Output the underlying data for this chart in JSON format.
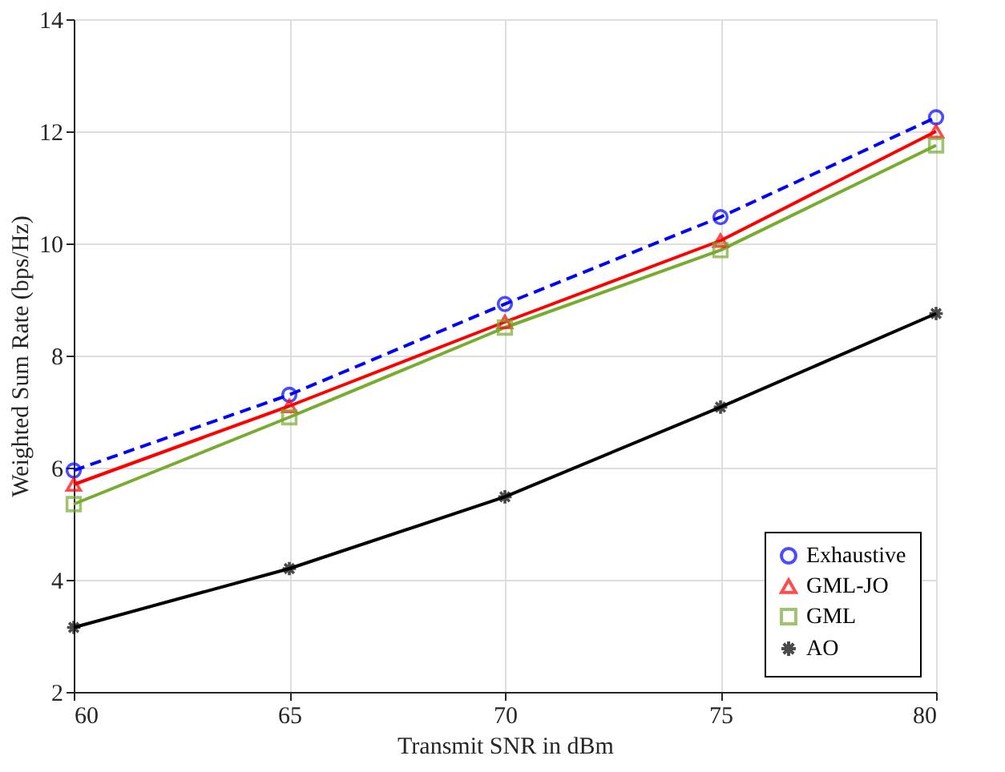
{
  "chart_data": {
    "type": "line",
    "xlabel": "Transmit SNR in dBm",
    "ylabel": "Weighted Sum Rate (bps/Hz)",
    "x": [
      60,
      65,
      70,
      75,
      80
    ],
    "xlim": [
      60,
      80
    ],
    "xticks": [
      60,
      65,
      70,
      75,
      80
    ],
    "ylim": [
      2,
      14
    ],
    "yticks": [
      2,
      4,
      6,
      8,
      10,
      12,
      14
    ],
    "grid": true,
    "legend": "bottom right",
    "series": [
      {
        "name": "Exhaustive",
        "color": "#0000ff",
        "marker": "circle",
        "line_style": "dashed",
        "values": [
          5.95,
          7.3,
          8.92,
          10.47,
          12.25
        ]
      },
      {
        "name": "GML-JO",
        "color": "#ff0000",
        "marker": "triangle",
        "line_style": "solid",
        "values": [
          5.7,
          7.1,
          8.6,
          10.05,
          12.0
        ]
      },
      {
        "name": "GML",
        "color": "#77ac30",
        "marker": "square",
        "line_style": "solid",
        "values": [
          5.35,
          6.9,
          8.5,
          9.88,
          11.75
        ]
      },
      {
        "name": "AO",
        "color": "#000000",
        "marker": "cross",
        "line_style": "solid",
        "values": [
          3.15,
          4.2,
          5.48,
          7.08,
          8.75
        ]
      }
    ]
  }
}
